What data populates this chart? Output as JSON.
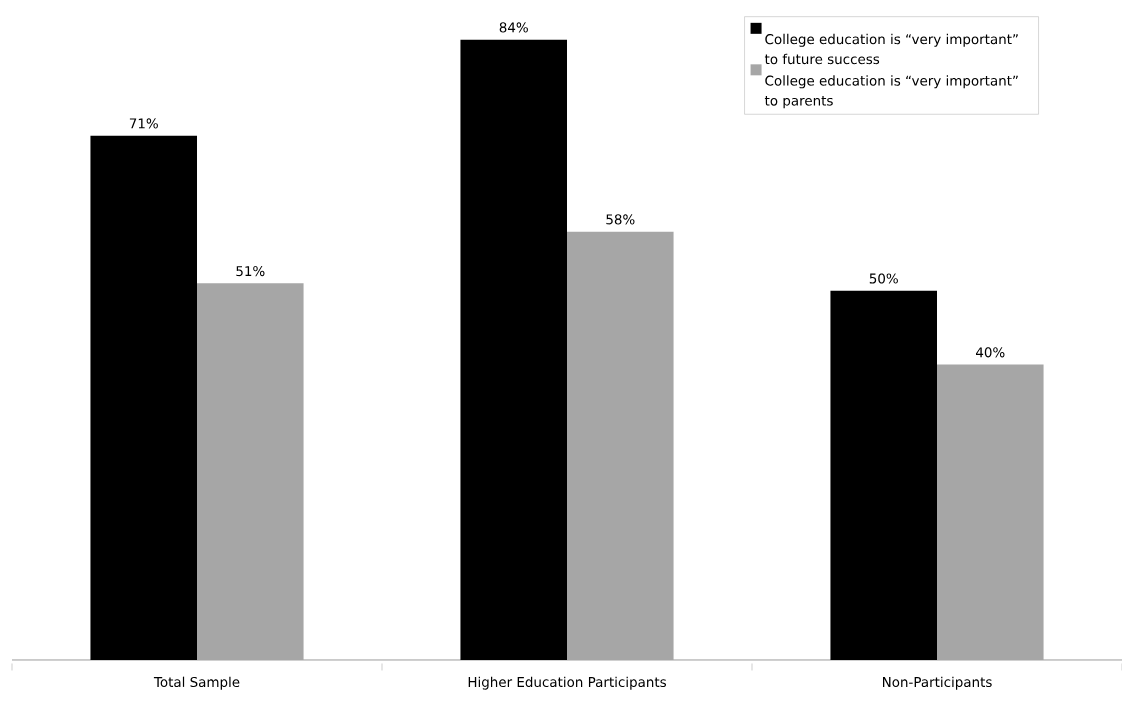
{
  "chart_data": {
    "type": "bar",
    "categories": [
      "Total Sample",
      "Higher Education Participants",
      "Non-Participants"
    ],
    "series": [
      {
        "name": "College education is “very important” to future success",
        "color": "#000000",
        "values": [
          71,
          84,
          50
        ],
        "value_labels": [
          "71%",
          "84%",
          "50%"
        ]
      },
      {
        "name": "College education is “very important” to parents",
        "color": "#a6a6a6",
        "values": [
          51,
          58,
          40
        ],
        "value_labels": [
          "51%",
          "58%",
          "40%"
        ]
      }
    ],
    "legend": "top right"
  }
}
